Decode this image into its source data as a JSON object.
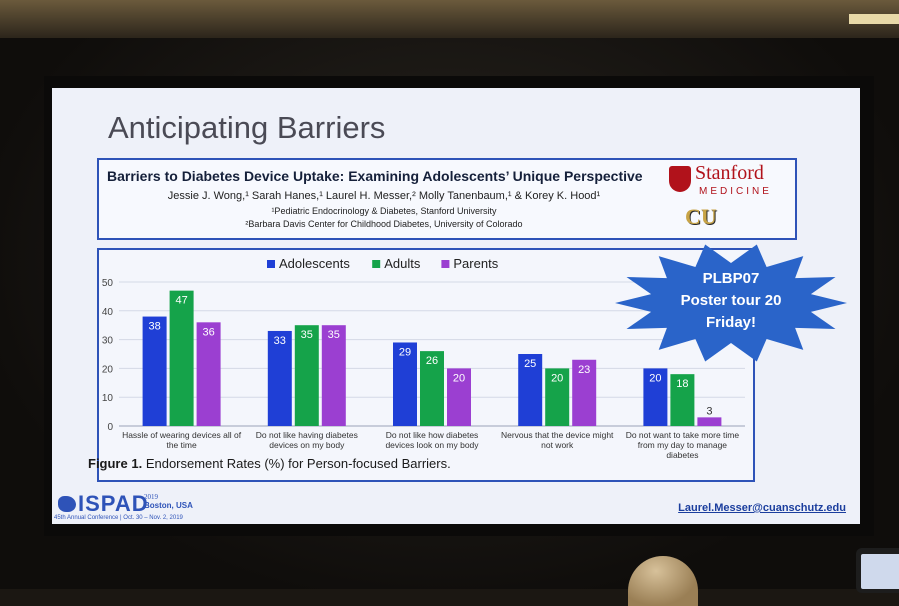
{
  "slide": {
    "title": "Anticipating Barriers"
  },
  "poster": {
    "title": "Barriers to Diabetes Device Uptake: Examining Adolescents’ Unique Perspective",
    "authors": "Jessie J. Wong,¹ Sarah Hanes,¹ Laurel H. Messer,² Molly Tanenbaum,¹ & Korey K. Hood¹",
    "affiliation_1": "¹Pediatric Endocrinology & Diabetes, Stanford University",
    "affiliation_2": "²Barbara Davis Center for Childhood Diabetes, University of Colorado",
    "stanford_name": "Stanford",
    "stanford_sub": "MEDICINE",
    "cu_logo": "CU"
  },
  "callout": {
    "line1": "PLBP07",
    "line2": "Poster tour 20",
    "line3": "Friday!",
    "color": "#2a64c9"
  },
  "figure_caption": {
    "label": "Figure 1.",
    "text": "Endorsement Rates (%) for Person-focused Barriers."
  },
  "footer": {
    "logo": "ISPAD",
    "year": "2019",
    "city": "Boston, USA",
    "conference": "45th Annual Conference | Oct. 30 – Nov. 2, 2019",
    "email": "Laurel.Messer@cuanschutz.edu"
  },
  "chart_data": {
    "type": "bar",
    "title": "",
    "xlabel": "",
    "ylabel": "",
    "ylim": [
      0,
      50
    ],
    "yticks": [
      0,
      10,
      20,
      30,
      40,
      50
    ],
    "grid": true,
    "legend": "top-center",
    "categories": [
      [
        "Hassle of wearing devices all of",
        "the time"
      ],
      [
        "Do not like having diabetes",
        "devices on my body"
      ],
      [
        "Do not like how diabetes",
        "devices look on my body"
      ],
      [
        "Nervous that the device might",
        "not work"
      ],
      [
        "Do not want to take more time",
        "from my day to manage",
        "diabetes"
      ]
    ],
    "series": [
      {
        "name": "Adolescents",
        "color": "#1f3fd6",
        "values": [
          38,
          33,
          29,
          25,
          20
        ]
      },
      {
        "name": "Adults",
        "color": "#15a34a",
        "values": [
          47,
          35,
          26,
          20,
          18
        ]
      },
      {
        "name": "Parents",
        "color": "#9b3fd1",
        "values": [
          36,
          35,
          20,
          23,
          3
        ]
      }
    ]
  }
}
